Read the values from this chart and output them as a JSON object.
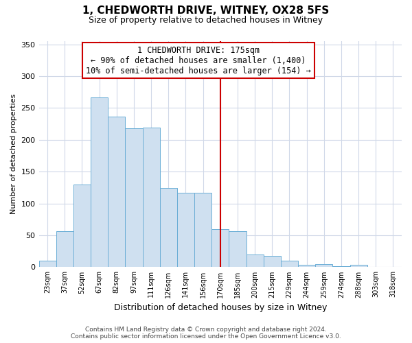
{
  "title": "1, CHEDWORTH DRIVE, WITNEY, OX28 5FS",
  "subtitle": "Size of property relative to detached houses in Witney",
  "xlabel": "Distribution of detached houses by size in Witney",
  "ylabel": "Number of detached properties",
  "bin_labels": [
    "23sqm",
    "37sqm",
    "52sqm",
    "67sqm",
    "82sqm",
    "97sqm",
    "111sqm",
    "126sqm",
    "141sqm",
    "156sqm",
    "170sqm",
    "185sqm",
    "200sqm",
    "215sqm",
    "229sqm",
    "244sqm",
    "259sqm",
    "274sqm",
    "288sqm",
    "303sqm",
    "318sqm"
  ],
  "bar_values": [
    10,
    57,
    130,
    267,
    237,
    218,
    219,
    124,
    117,
    117,
    60,
    57,
    20,
    18,
    10,
    4,
    5,
    2,
    4,
    0,
    0
  ],
  "bar_color": "#cfe0f0",
  "bar_edge_color": "#6baed6",
  "vline_x": 10.5,
  "vline_color": "#cc0000",
  "annotation_title": "1 CHEDWORTH DRIVE: 175sqm",
  "annotation_line1": "← 90% of detached houses are smaller (1,400)",
  "annotation_line2": "10% of semi-detached houses are larger (154) →",
  "ylim": [
    0,
    355
  ],
  "yticks": [
    0,
    50,
    100,
    150,
    200,
    250,
    300,
    350
  ],
  "footer_line1": "Contains HM Land Registry data © Crown copyright and database right 2024.",
  "footer_line2": "Contains public sector information licensed under the Open Government Licence v3.0.",
  "bg_color": "#ffffff",
  "grid_color": "#d0d8e8"
}
